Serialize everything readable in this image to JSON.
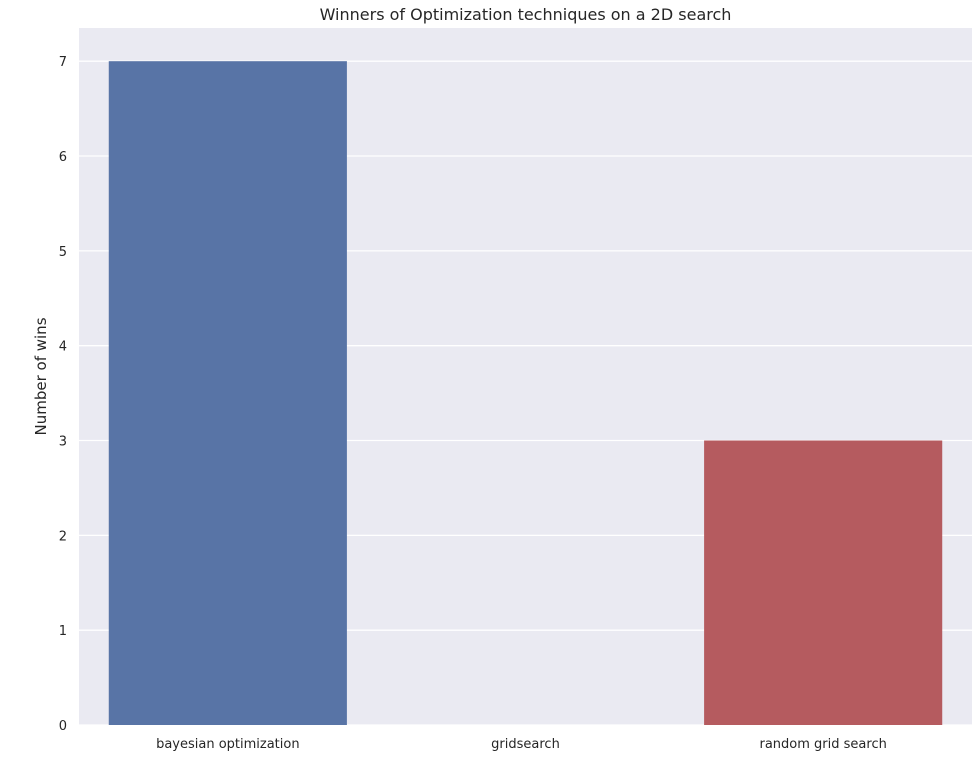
{
  "chart_data": {
    "type": "bar",
    "title": "Winners of Optimization techniques on a 2D search",
    "xlabel": "",
    "ylabel": "Number of wins",
    "categories": [
      "bayesian optimization",
      "gridsearch",
      "random grid search"
    ],
    "values": [
      7,
      0,
      3
    ],
    "colors": [
      "#5874a6",
      "#5a9d68",
      "#b55b5f"
    ],
    "ylim": [
      0,
      7.35
    ],
    "yticks": [
      0,
      1,
      2,
      3,
      4,
      5,
      6,
      7
    ],
    "grid": true,
    "grid_axis": "y",
    "background": "#eaeaf2",
    "grid_color": "#ffffff",
    "legend": "none"
  }
}
